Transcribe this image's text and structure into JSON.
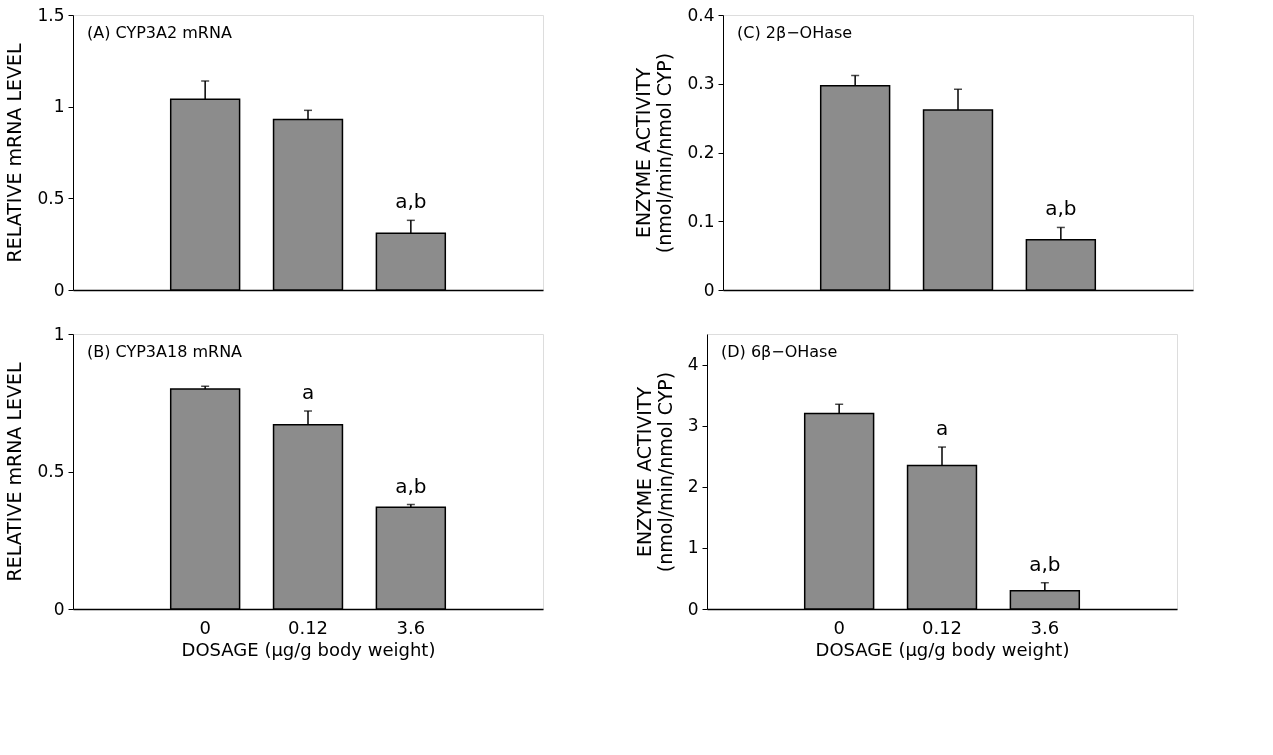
{
  "chart_data": [
    {
      "type": "bar",
      "title": "(A) CYP3A2 mRNA",
      "ylabel": "RELATIVE mRNA LEVEL",
      "categories": [
        "0",
        "0.12",
        "3.6"
      ],
      "values": [
        1.04,
        0.93,
        0.31
      ],
      "errors": [
        0.1,
        0.05,
        0.07
      ],
      "color": "#8c8c8c",
      "ylim": [
        0,
        1.5
      ],
      "yticks": [
        0,
        0.5,
        1,
        1.5
      ],
      "tick_labels": "y",
      "annotations": [
        {
          "text": "a,b",
          "x": "3.6",
          "y": 0.31
        }
      ]
    },
    {
      "type": "bar",
      "title": "(C) 2β−OHase",
      "ylabel": "ENZYME ACTIVITY\n(nmol/min/nmol CYP)",
      "categories": [
        "0",
        "0.12",
        "3.6"
      ],
      "values": [
        0.297,
        0.262,
        0.073
      ],
      "errors": [
        0.015,
        0.03,
        0.018
      ],
      "color": "#8c8c8c",
      "ylim": [
        0,
        0.4
      ],
      "yticks": [
        0,
        0.1,
        0.2,
        0.3,
        0.4
      ],
      "tick_labels": "y",
      "annotations": [
        {
          "text": "a,b",
          "x": "3.6",
          "y": 0.073
        }
      ]
    },
    {
      "type": "bar",
      "title": "(B) CYP3A18 mRNA",
      "ylabel": "RELATIVE mRNA LEVEL",
      "xlabel": "DOSAGE (μg/g body weight)",
      "categories": [
        "0",
        "0.12",
        "3.6"
      ],
      "values": [
        0.8,
        0.67,
        0.37
      ],
      "errors": [
        0.01,
        0.05,
        0.01
      ],
      "color": "#8c8c8c",
      "ylim": [
        0,
        1
      ],
      "yticks": [
        0,
        0.5,
        1
      ],
      "annotations": [
        {
          "text": "a",
          "x": "0.12",
          "y": 0.67
        },
        {
          "text": "a,b",
          "x": "3.6",
          "y": 0.37
        }
      ]
    },
    {
      "type": "bar",
      "title": "(D) 6β−OHase",
      "ylabel": "ENZYME ACTIVITY\n(nmol/min/nmol CYP)",
      "xlabel": "DOSAGE (μg/g body weight)",
      "categories": [
        "0",
        "0.12",
        "3.6"
      ],
      "values": [
        3.2,
        2.35,
        0.3
      ],
      "errors": [
        0.15,
        0.3,
        0.13
      ],
      "color": "#8c8c8c",
      "ylim": [
        0,
        4.5
      ],
      "yticks": [
        0,
        1,
        2,
        3,
        4
      ],
      "annotations": [
        {
          "text": "a",
          "x": "0.12",
          "y": 2.35
        },
        {
          "text": "a,b",
          "x": "3.6",
          "y": 0.3
        }
      ]
    }
  ]
}
